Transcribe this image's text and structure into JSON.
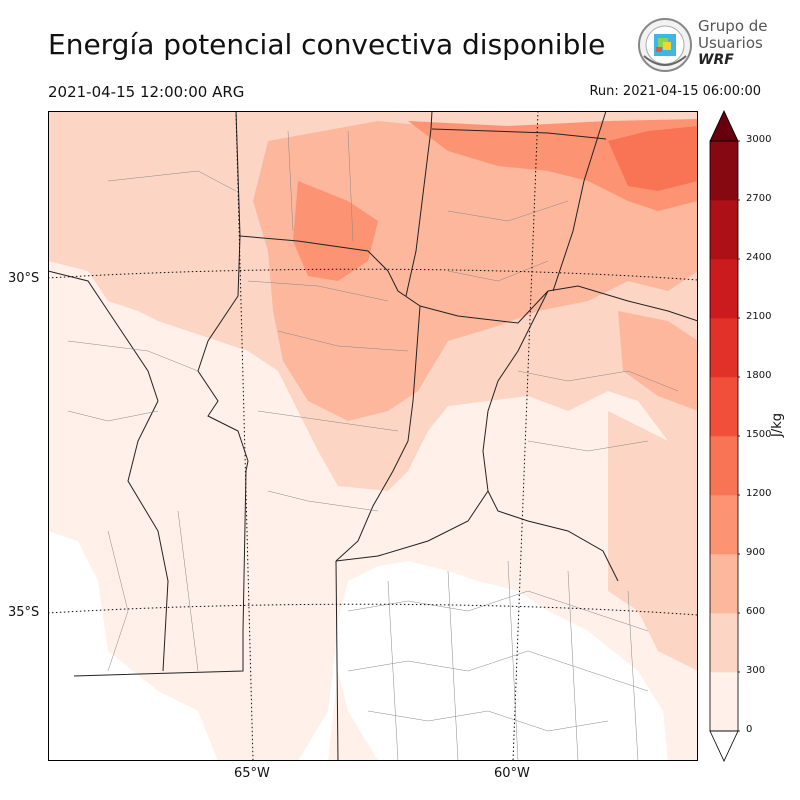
{
  "header": {
    "title": "Energía potencial convectiva disponible",
    "valid_time": "2021-04-15 12:00:00 ARG",
    "run_time": "Run: 2021-04-15 06:00:00"
  },
  "logo": {
    "line1": "Grupo de",
    "line2": "Usuarios",
    "line3": "WRF"
  },
  "map": {
    "lat_labels": [
      "30°S",
      "35°S"
    ],
    "lon_labels": [
      "65°W",
      "60°W"
    ]
  },
  "colorbar": {
    "unit": "J/kg",
    "ticks": [
      "0",
      "300",
      "600",
      "900",
      "1200",
      "1500",
      "1800",
      "2100",
      "2400",
      "2700",
      "3000"
    ],
    "colors": [
      "#fff0e9",
      "#fdd5c4",
      "#fcb79c",
      "#fc9474",
      "#f87454",
      "#f14f3a",
      "#e13129",
      "#cb1b1e",
      "#ad1016",
      "#860811"
    ],
    "under_color": "#ffffff",
    "over_color": "#67000d"
  }
}
